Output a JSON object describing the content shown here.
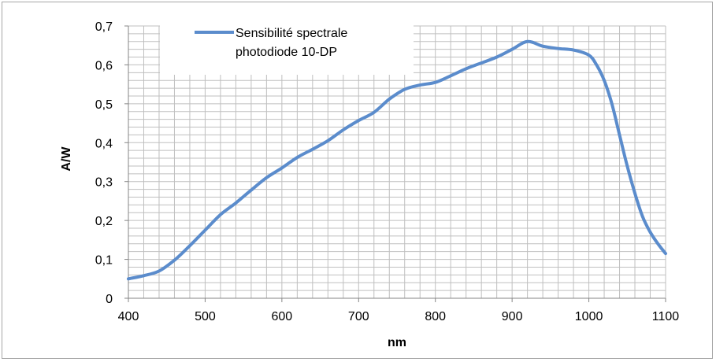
{
  "chart_data": {
    "type": "line",
    "title": "",
    "xlabel": "nm",
    "ylabel": "A/W",
    "xlim": [
      400,
      1100
    ],
    "ylim": [
      0,
      0.7
    ],
    "x_ticks": [
      400,
      500,
      600,
      700,
      800,
      900,
      1000,
      1100
    ],
    "x_tick_labels": [
      "400",
      "500",
      "600",
      "700",
      "800",
      "900",
      "1000",
      "1100"
    ],
    "y_ticks": [
      0,
      0.1,
      0.2,
      0.3,
      0.4,
      0.5,
      0.6,
      0.7
    ],
    "y_tick_labels": [
      "0",
      "0,1",
      "0,2",
      "0,3",
      "0,4",
      "0,5",
      "0,6",
      "0,7"
    ],
    "grid": true,
    "legend_position": "top-center",
    "series": [
      {
        "name": "Sensibilité spectrale photodiode 10-DP",
        "legend_lines": [
          "Sensibilité spectrale",
          "photodiode 10-DP"
        ],
        "color": "#5b8ccc",
        "x": [
          400,
          420,
          440,
          460,
          480,
          500,
          520,
          540,
          560,
          580,
          600,
          620,
          640,
          660,
          680,
          700,
          720,
          740,
          760,
          780,
          800,
          820,
          840,
          860,
          880,
          900,
          920,
          940,
          960,
          980,
          1000,
          1010,
          1020,
          1030,
          1040,
          1050,
          1060,
          1070,
          1080,
          1090,
          1100
        ],
        "y": [
          0.05,
          0.058,
          0.07,
          0.098,
          0.135,
          0.175,
          0.215,
          0.245,
          0.278,
          0.31,
          0.335,
          0.362,
          0.383,
          0.405,
          0.433,
          0.457,
          0.478,
          0.512,
          0.537,
          0.548,
          0.555,
          0.572,
          0.59,
          0.605,
          0.62,
          0.64,
          0.66,
          0.648,
          0.642,
          0.638,
          0.625,
          0.6,
          0.56,
          0.5,
          0.42,
          0.34,
          0.27,
          0.21,
          0.17,
          0.14,
          0.115
        ]
      }
    ]
  }
}
